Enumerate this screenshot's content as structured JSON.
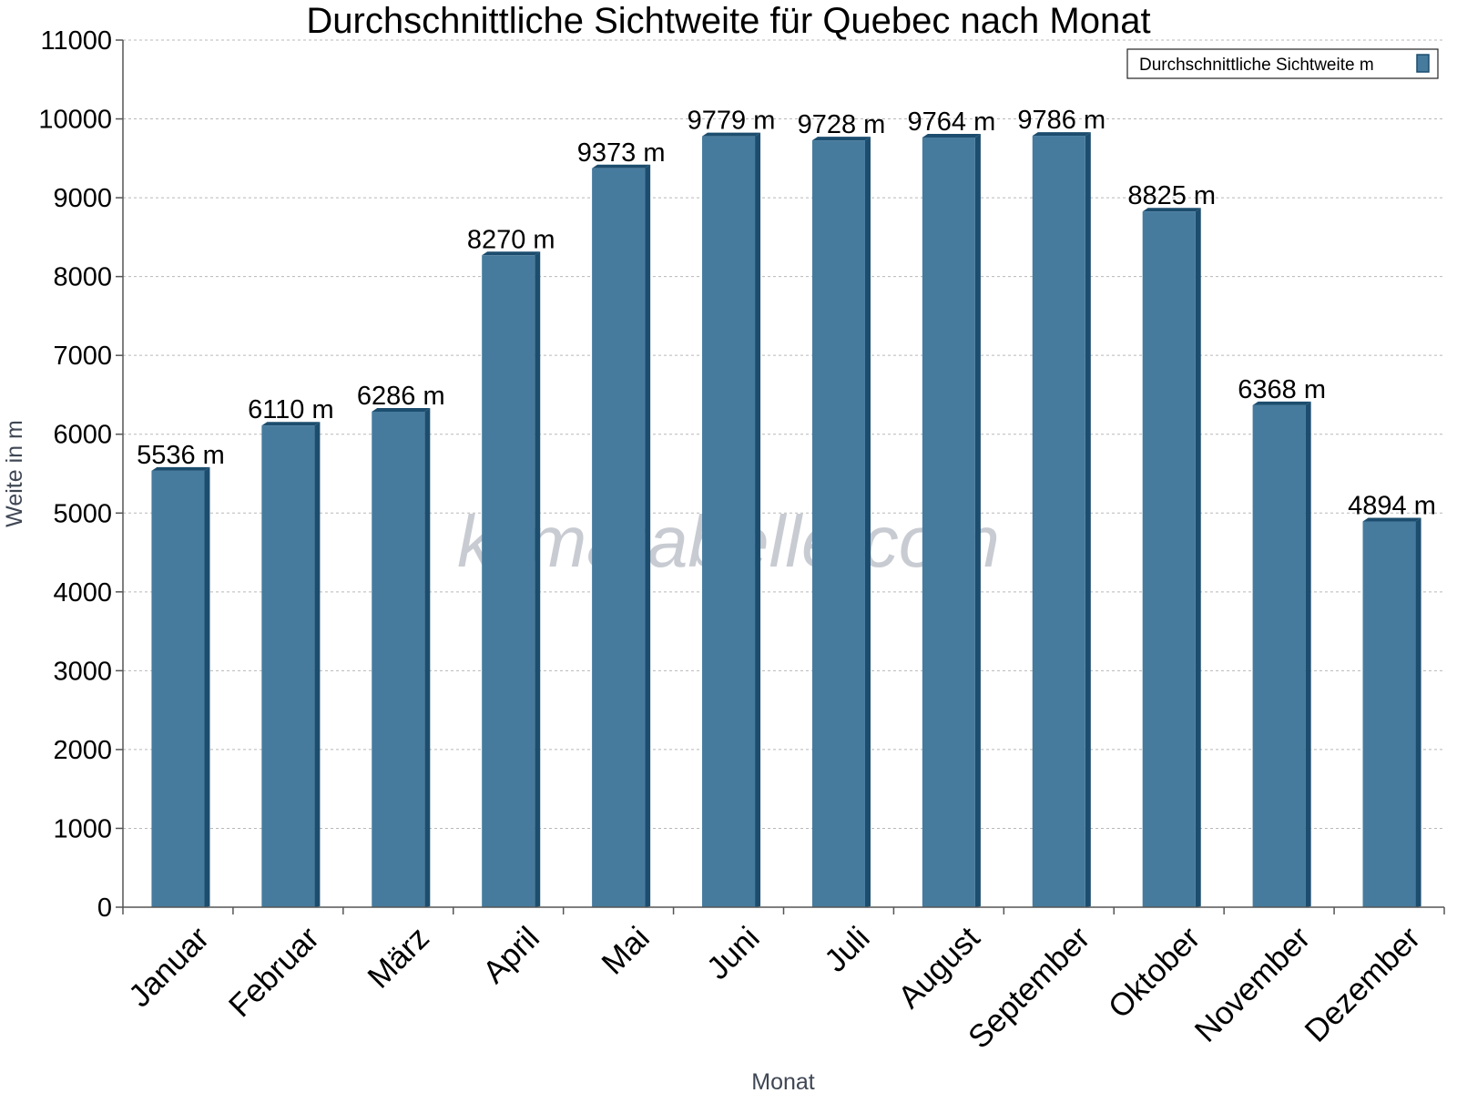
{
  "chart_data": {
    "type": "bar",
    "title": "Durchschnittliche Sichtweite für Quebec nach Monat",
    "xlabel": "Monat",
    "ylabel": "Weite in m",
    "categories": [
      "Januar",
      "Februar",
      "März",
      "April",
      "Mai",
      "Juni",
      "Juli",
      "August",
      "September",
      "Oktober",
      "November",
      "Dezember"
    ],
    "series": [
      {
        "name": "Durchschnittliche Sichtweite m",
        "values": [
          5536,
          6110,
          6286,
          8270,
          9373,
          9779,
          9728,
          9764,
          9786,
          8825,
          6368,
          4894
        ],
        "color": "#467b9e",
        "side_color": "#1c4d6e"
      }
    ],
    "data_labels": [
      "5536 m",
      "6110 m",
      "6286 m",
      "8270 m",
      "9373 m",
      "9779 m",
      "9728 m",
      "9764 m",
      "9786 m",
      "8825 m",
      "6368 m",
      "4894 m"
    ],
    "ylim": [
      0,
      11000
    ],
    "yticks": [
      0,
      1000,
      2000,
      3000,
      4000,
      5000,
      6000,
      7000,
      8000,
      9000,
      10000,
      11000
    ],
    "grid": true,
    "legend": "top-right",
    "watermark": "klimatabelle.com"
  }
}
